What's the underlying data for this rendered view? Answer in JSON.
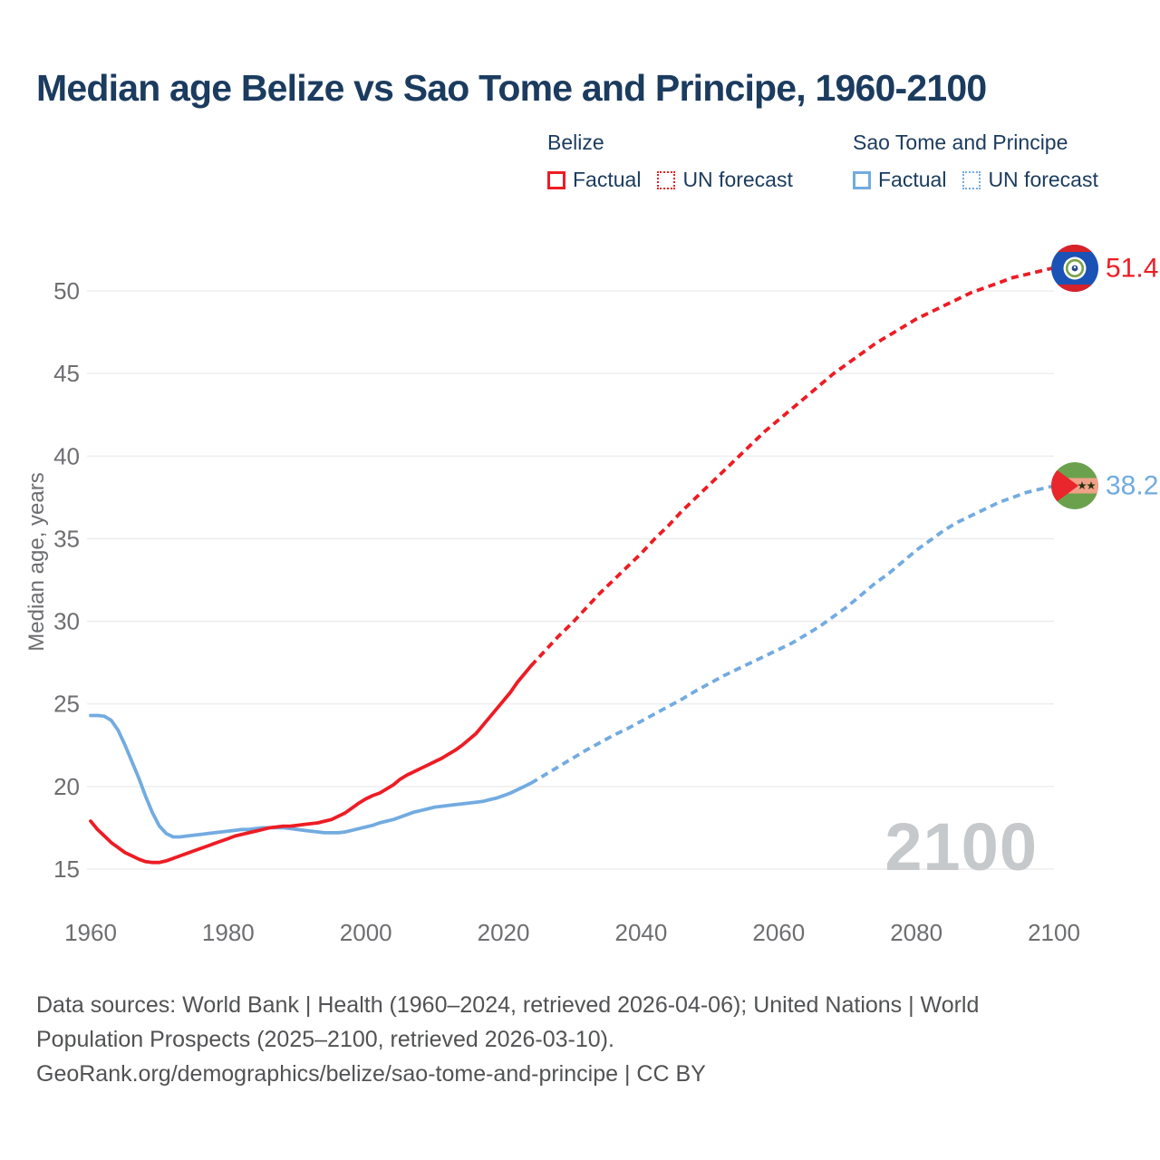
{
  "title": "Median age Belize vs Sao Tome and Principe, 1960-2100",
  "legend": {
    "groups": [
      {
        "title": "Belize",
        "items": [
          {
            "label": "Factual",
            "style": "solid"
          },
          {
            "label": "UN forecast",
            "style": "dotted"
          }
        ]
      },
      {
        "title": "Sao Tome and Principe",
        "items": [
          {
            "label": "Factual",
            "style": "solid"
          },
          {
            "label": "UN forecast",
            "style": "dotted"
          }
        ]
      }
    ]
  },
  "colors": {
    "belize": "#ed1c24",
    "sao_tome": "#72abe0",
    "title_text": "#1b3b5f",
    "axis_text": "#6d6e71",
    "grid": "#ebebeb",
    "watermark": "#c6c9cc",
    "footer_text": "#515254"
  },
  "watermark": "2100",
  "footer": {
    "lines": [
      "Data sources: World Bank | Health (1960–2024, retrieved 2026-04-06); United Nations | World",
      "Population Prospects (2025–2100, retrieved 2026-03-10).",
      "GeoRank.org/demographics/belize/sao-tome-and-principe | CC BY"
    ]
  },
  "chart_data": {
    "type": "line",
    "title": "Median age Belize vs Sao Tome and Principe, 1960-2100",
    "xlabel": "",
    "ylabel": "Median age, years",
    "xlim": [
      1960,
      2100
    ],
    "ylim": [
      15,
      52
    ],
    "xticks": [
      1960,
      1980,
      2000,
      2020,
      2040,
      2060,
      2080,
      2100
    ],
    "yticks": [
      15,
      20,
      25,
      30,
      35,
      40,
      45,
      50
    ],
    "grid": "horizontal",
    "legend_position": "top-right",
    "series": [
      {
        "name": "Belize — Factual",
        "color": "#ed1c24",
        "style": "solid",
        "points": [
          [
            1960,
            17.9
          ],
          [
            1961,
            17.4
          ],
          [
            1962,
            17.0
          ],
          [
            1963,
            16.6
          ],
          [
            1964,
            16.3
          ],
          [
            1965,
            16.0
          ],
          [
            1966,
            15.8
          ],
          [
            1967,
            15.6
          ],
          [
            1968,
            15.45
          ],
          [
            1969,
            15.4
          ],
          [
            1970,
            15.4
          ],
          [
            1971,
            15.5
          ],
          [
            1972,
            15.65
          ],
          [
            1973,
            15.8
          ],
          [
            1974,
            15.95
          ],
          [
            1975,
            16.1
          ],
          [
            1976,
            16.25
          ],
          [
            1977,
            16.4
          ],
          [
            1978,
            16.55
          ],
          [
            1979,
            16.7
          ],
          [
            1980,
            16.85
          ],
          [
            1981,
            17.0
          ],
          [
            1982,
            17.1
          ],
          [
            1983,
            17.2
          ],
          [
            1984,
            17.3
          ],
          [
            1985,
            17.4
          ],
          [
            1986,
            17.5
          ],
          [
            1987,
            17.55
          ],
          [
            1988,
            17.6
          ],
          [
            1989,
            17.6
          ],
          [
            1990,
            17.65
          ],
          [
            1991,
            17.7
          ],
          [
            1992,
            17.75
          ],
          [
            1993,
            17.8
          ],
          [
            1994,
            17.9
          ],
          [
            1995,
            18.0
          ],
          [
            1996,
            18.2
          ],
          [
            1997,
            18.4
          ],
          [
            1998,
            18.7
          ],
          [
            1999,
            19.0
          ],
          [
            2000,
            19.25
          ],
          [
            2001,
            19.45
          ],
          [
            2002,
            19.6
          ],
          [
            2003,
            19.85
          ],
          [
            2004,
            20.1
          ],
          [
            2005,
            20.45
          ],
          [
            2006,
            20.7
          ],
          [
            2007,
            20.9
          ],
          [
            2008,
            21.1
          ],
          [
            2009,
            21.3
          ],
          [
            2010,
            21.5
          ],
          [
            2011,
            21.7
          ],
          [
            2012,
            21.95
          ],
          [
            2013,
            22.2
          ],
          [
            2014,
            22.5
          ],
          [
            2015,
            22.85
          ],
          [
            2016,
            23.2
          ],
          [
            2017,
            23.7
          ],
          [
            2018,
            24.2
          ],
          [
            2019,
            24.7
          ],
          [
            2020,
            25.2
          ],
          [
            2021,
            25.7
          ],
          [
            2022,
            26.3
          ],
          [
            2023,
            26.8
          ],
          [
            2024,
            27.3
          ]
        ]
      },
      {
        "name": "Belize — UN forecast",
        "color": "#ed1c24",
        "style": "dashed",
        "points": [
          [
            2024,
            27.3
          ],
          [
            2026,
            28.2
          ],
          [
            2028,
            29.1
          ],
          [
            2030,
            29.9
          ],
          [
            2032,
            30.8
          ],
          [
            2034,
            31.7
          ],
          [
            2036,
            32.5
          ],
          [
            2038,
            33.3
          ],
          [
            2040,
            34.1
          ],
          [
            2042,
            35.0
          ],
          [
            2044,
            35.8
          ],
          [
            2046,
            36.7
          ],
          [
            2048,
            37.5
          ],
          [
            2050,
            38.3
          ],
          [
            2052,
            39.1
          ],
          [
            2054,
            39.9
          ],
          [
            2056,
            40.7
          ],
          [
            2058,
            41.5
          ],
          [
            2060,
            42.2
          ],
          [
            2062,
            42.9
          ],
          [
            2064,
            43.6
          ],
          [
            2066,
            44.3
          ],
          [
            2068,
            45.0
          ],
          [
            2070,
            45.6
          ],
          [
            2072,
            46.2
          ],
          [
            2074,
            46.8
          ],
          [
            2076,
            47.3
          ],
          [
            2078,
            47.8
          ],
          [
            2080,
            48.3
          ],
          [
            2082,
            48.7
          ],
          [
            2084,
            49.1
          ],
          [
            2086,
            49.5
          ],
          [
            2088,
            49.9
          ],
          [
            2090,
            50.2
          ],
          [
            2092,
            50.5
          ],
          [
            2094,
            50.8
          ],
          [
            2096,
            51.0
          ],
          [
            2098,
            51.2
          ],
          [
            2100,
            51.4
          ]
        ]
      },
      {
        "name": "Sao Tome and Principe — Factual",
        "color": "#72abe0",
        "style": "solid",
        "points": [
          [
            1960,
            24.3
          ],
          [
            1961,
            24.3
          ],
          [
            1962,
            24.25
          ],
          [
            1963,
            24.0
          ],
          [
            1964,
            23.4
          ],
          [
            1965,
            22.5
          ],
          [
            1966,
            21.5
          ],
          [
            1967,
            20.5
          ],
          [
            1968,
            19.4
          ],
          [
            1969,
            18.4
          ],
          [
            1970,
            17.6
          ],
          [
            1971,
            17.15
          ],
          [
            1972,
            16.95
          ],
          [
            1973,
            16.95
          ],
          [
            1974,
            17.0
          ],
          [
            1975,
            17.05
          ],
          [
            1976,
            17.1
          ],
          [
            1977,
            17.15
          ],
          [
            1978,
            17.2
          ],
          [
            1979,
            17.25
          ],
          [
            1980,
            17.3
          ],
          [
            1981,
            17.35
          ],
          [
            1982,
            17.4
          ],
          [
            1983,
            17.4
          ],
          [
            1984,
            17.45
          ],
          [
            1985,
            17.5
          ],
          [
            1986,
            17.5
          ],
          [
            1987,
            17.5
          ],
          [
            1988,
            17.5
          ],
          [
            1989,
            17.45
          ],
          [
            1990,
            17.4
          ],
          [
            1991,
            17.35
          ],
          [
            1992,
            17.3
          ],
          [
            1993,
            17.25
          ],
          [
            1994,
            17.2
          ],
          [
            1995,
            17.2
          ],
          [
            1996,
            17.2
          ],
          [
            1997,
            17.25
          ],
          [
            1998,
            17.35
          ],
          [
            1999,
            17.45
          ],
          [
            2000,
            17.55
          ],
          [
            2001,
            17.65
          ],
          [
            2002,
            17.8
          ],
          [
            2003,
            17.9
          ],
          [
            2004,
            18.0
          ],
          [
            2005,
            18.15
          ],
          [
            2006,
            18.3
          ],
          [
            2007,
            18.45
          ],
          [
            2008,
            18.55
          ],
          [
            2009,
            18.65
          ],
          [
            2010,
            18.75
          ],
          [
            2011,
            18.8
          ],
          [
            2012,
            18.85
          ],
          [
            2013,
            18.9
          ],
          [
            2014,
            18.95
          ],
          [
            2015,
            19.0
          ],
          [
            2016,
            19.05
          ],
          [
            2017,
            19.1
          ],
          [
            2018,
            19.2
          ],
          [
            2019,
            19.3
          ],
          [
            2020,
            19.45
          ],
          [
            2021,
            19.6
          ],
          [
            2022,
            19.8
          ],
          [
            2023,
            20.0
          ],
          [
            2024,
            20.2
          ]
        ]
      },
      {
        "name": "Sao Tome and Principe — UN forecast",
        "color": "#72abe0",
        "style": "dashed",
        "points": [
          [
            2024,
            20.2
          ],
          [
            2026,
            20.7
          ],
          [
            2028,
            21.2
          ],
          [
            2030,
            21.7
          ],
          [
            2032,
            22.2
          ],
          [
            2034,
            22.65
          ],
          [
            2036,
            23.1
          ],
          [
            2038,
            23.5
          ],
          [
            2040,
            23.95
          ],
          [
            2042,
            24.4
          ],
          [
            2044,
            24.85
          ],
          [
            2046,
            25.3
          ],
          [
            2048,
            25.8
          ],
          [
            2050,
            26.25
          ],
          [
            2052,
            26.7
          ],
          [
            2054,
            27.1
          ],
          [
            2056,
            27.5
          ],
          [
            2058,
            27.9
          ],
          [
            2060,
            28.3
          ],
          [
            2062,
            28.7
          ],
          [
            2064,
            29.2
          ],
          [
            2066,
            29.7
          ],
          [
            2068,
            30.3
          ],
          [
            2070,
            30.9
          ],
          [
            2072,
            31.6
          ],
          [
            2074,
            32.3
          ],
          [
            2076,
            32.9
          ],
          [
            2078,
            33.6
          ],
          [
            2080,
            34.3
          ],
          [
            2082,
            34.9
          ],
          [
            2084,
            35.5
          ],
          [
            2086,
            36.0
          ],
          [
            2088,
            36.4
          ],
          [
            2090,
            36.8
          ],
          [
            2092,
            37.2
          ],
          [
            2094,
            37.5
          ],
          [
            2096,
            37.8
          ],
          [
            2098,
            38.0
          ],
          [
            2100,
            38.2
          ]
        ]
      }
    ],
    "end_labels": [
      {
        "series": "Belize",
        "year": 2100,
        "value": 51.4,
        "text": "51.4"
      },
      {
        "series": "Sao Tome and Principe",
        "year": 2100,
        "value": 38.2,
        "text": "38.2"
      }
    ]
  }
}
